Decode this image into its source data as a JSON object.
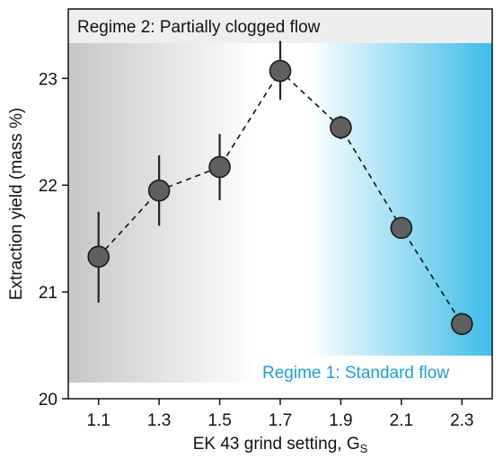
{
  "chart_data": {
    "type": "scatter",
    "x": [
      1.1,
      1.3,
      1.5,
      1.7,
      1.9,
      2.1,
      2.3
    ],
    "y": [
      21.33,
      21.95,
      22.17,
      23.07,
      22.54,
      21.6,
      20.7
    ],
    "yerr_low": [
      0.43,
      0.33,
      0.31,
      0.27,
      0.11,
      0,
      0
    ],
    "yerr_high": [
      0.42,
      0.33,
      0.31,
      0.28,
      0.11,
      0,
      0
    ],
    "xlabel": "EK 43 grind setting, G",
    "xlabel_subscript": "S",
    "ylabel": "Extraction yield (mass %)",
    "xticks": [
      "1.1",
      "1.3",
      "1.5",
      "1.7",
      "1.9",
      "2.1",
      "2.3"
    ],
    "yticks": [
      "20",
      "21",
      "22",
      "23"
    ],
    "xlim": [
      1.0,
      2.4
    ],
    "ylim": [
      20.0,
      23.65
    ],
    "line_style": "dashed",
    "marker_color": "#5f5f5f",
    "annotations": {
      "regime2": "Regime 2: Partially clogged flow",
      "regime1": "Regime 1: Standard flow"
    },
    "colors": {
      "regime2_shade": "#c8c8c8",
      "regime1_shade": "#3dbde9",
      "regime1_text": "#1a9fd6"
    }
  }
}
